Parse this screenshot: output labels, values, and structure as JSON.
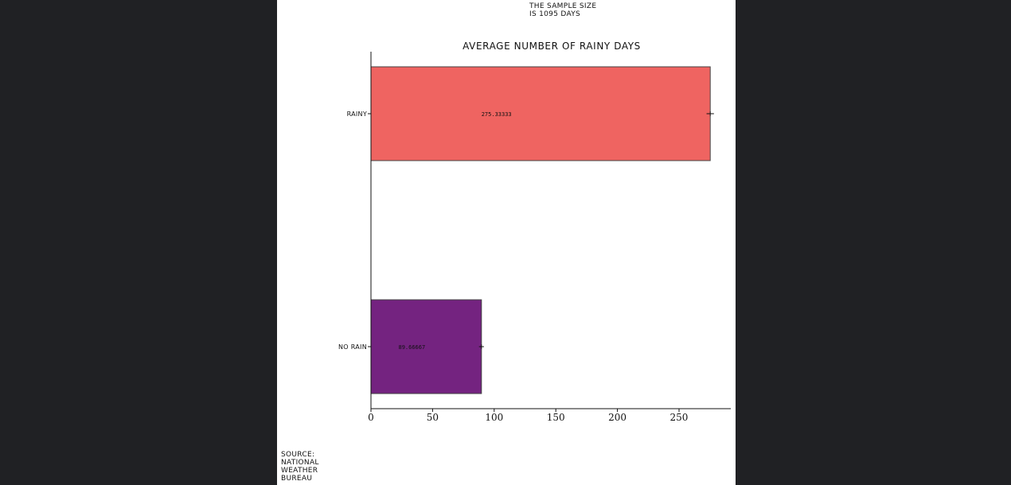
{
  "annotation": {
    "note": "THE SAMPLE SIZE\nIS 1095 DAYS",
    "source": "SOURCE:\nNATIONAL\nWEATHER\nBUREAU"
  },
  "chart_data": {
    "type": "bar",
    "orientation": "horizontal",
    "title": "AVERAGE NUMBER OF RAINY DAYS",
    "xlabel": "",
    "ylabel": "",
    "categories": [
      "RAINY",
      "NO RAIN"
    ],
    "values": [
      275.33333,
      89.66667
    ],
    "value_labels": [
      "275.33333",
      "89.66667"
    ],
    "error": [
      3,
      2
    ],
    "colors": [
      "#ef6461",
      "#742380"
    ],
    "xlim": [
      0,
      292
    ],
    "xticks": [
      0,
      50,
      100,
      150,
      200,
      250
    ],
    "grid": false
  }
}
